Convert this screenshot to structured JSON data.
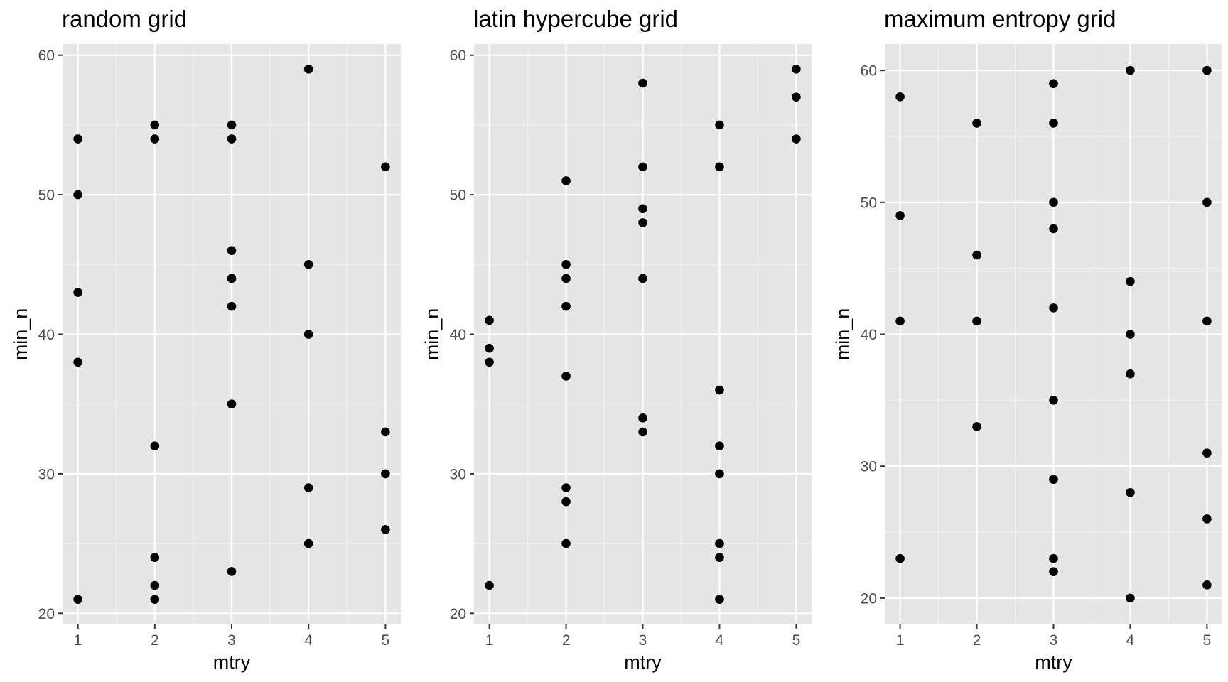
{
  "chart_data": [
    {
      "type": "scatter",
      "title": "random grid",
      "xlabel": "mtry",
      "ylabel": "min_n",
      "xlim": [
        0.8,
        5.2
      ],
      "ylim": [
        19.2,
        60.8
      ],
      "xticks": [
        1,
        2,
        3,
        4,
        5
      ],
      "yticks": [
        20,
        30,
        40,
        50,
        60
      ],
      "grid": true,
      "colors": {
        "panel": "#e5e5e5",
        "grid_major": "#ffffff",
        "point": "#000000"
      },
      "points": [
        [
          1,
          54
        ],
        [
          1,
          50
        ],
        [
          1,
          43
        ],
        [
          1,
          38
        ],
        [
          1,
          21
        ],
        [
          2,
          55
        ],
        [
          2,
          54
        ],
        [
          2,
          32
        ],
        [
          2,
          24
        ],
        [
          2,
          22
        ],
        [
          2,
          21
        ],
        [
          3,
          55
        ],
        [
          3,
          54
        ],
        [
          3,
          46
        ],
        [
          3,
          44
        ],
        [
          3,
          42
        ],
        [
          3,
          35
        ],
        [
          3,
          23
        ],
        [
          4,
          59
        ],
        [
          4,
          45
        ],
        [
          4,
          40
        ],
        [
          4,
          29
        ],
        [
          4,
          25
        ],
        [
          5,
          52
        ],
        [
          5,
          33
        ],
        [
          5,
          30
        ],
        [
          5,
          26
        ]
      ]
    },
    {
      "type": "scatter",
      "title": "latin hypercube grid",
      "xlabel": "mtry",
      "ylabel": "min_n",
      "xlim": [
        0.8,
        5.2
      ],
      "ylim": [
        19.2,
        60.8
      ],
      "xticks": [
        1,
        2,
        3,
        4,
        5
      ],
      "yticks": [
        20,
        30,
        40,
        50,
        60
      ],
      "grid": true,
      "colors": {
        "panel": "#e5e5e5",
        "grid_major": "#ffffff",
        "point": "#000000"
      },
      "points": [
        [
          1,
          41
        ],
        [
          1,
          39
        ],
        [
          1,
          38
        ],
        [
          1,
          22
        ],
        [
          2,
          51
        ],
        [
          2,
          45
        ],
        [
          2,
          44
        ],
        [
          2,
          42
        ],
        [
          2,
          37
        ],
        [
          2,
          29
        ],
        [
          2,
          28
        ],
        [
          2,
          25
        ],
        [
          3,
          58
        ],
        [
          3,
          52
        ],
        [
          3,
          49
        ],
        [
          3,
          48
        ],
        [
          3,
          44
        ],
        [
          3,
          34
        ],
        [
          3,
          33
        ],
        [
          4,
          55
        ],
        [
          4,
          52
        ],
        [
          4,
          36
        ],
        [
          4,
          32
        ],
        [
          4,
          30
        ],
        [
          4,
          25
        ],
        [
          4,
          24
        ],
        [
          4,
          21
        ],
        [
          5,
          59
        ],
        [
          5,
          57
        ],
        [
          5,
          54
        ]
      ]
    },
    {
      "type": "scatter",
      "title": "maximum entropy grid",
      "xlabel": "mtry",
      "ylabel": "min_n",
      "xlim": [
        0.8,
        5.2
      ],
      "ylim": [
        18,
        62
      ],
      "xticks": [
        1,
        2,
        3,
        4,
        5
      ],
      "yticks": [
        20,
        30,
        40,
        50,
        60
      ],
      "grid": true,
      "colors": {
        "panel": "#e5e5e5",
        "grid_major": "#ffffff",
        "point": "#000000"
      },
      "points": [
        [
          1,
          58
        ],
        [
          1,
          49
        ],
        [
          1,
          41
        ],
        [
          1,
          23
        ],
        [
          2,
          56
        ],
        [
          2,
          46
        ],
        [
          2,
          41
        ],
        [
          2,
          33
        ],
        [
          3,
          59
        ],
        [
          3,
          56
        ],
        [
          3,
          50
        ],
        [
          3,
          48
        ],
        [
          3,
          42
        ],
        [
          3,
          35
        ],
        [
          3,
          29
        ],
        [
          3,
          23
        ],
        [
          3,
          22
        ],
        [
          4,
          60
        ],
        [
          4,
          44
        ],
        [
          4,
          40
        ],
        [
          4,
          37
        ],
        [
          4,
          28
        ],
        [
          4,
          20
        ],
        [
          5,
          60
        ],
        [
          5,
          50
        ],
        [
          5,
          41
        ],
        [
          5,
          31
        ],
        [
          5,
          26
        ],
        [
          5,
          21
        ]
      ]
    }
  ]
}
